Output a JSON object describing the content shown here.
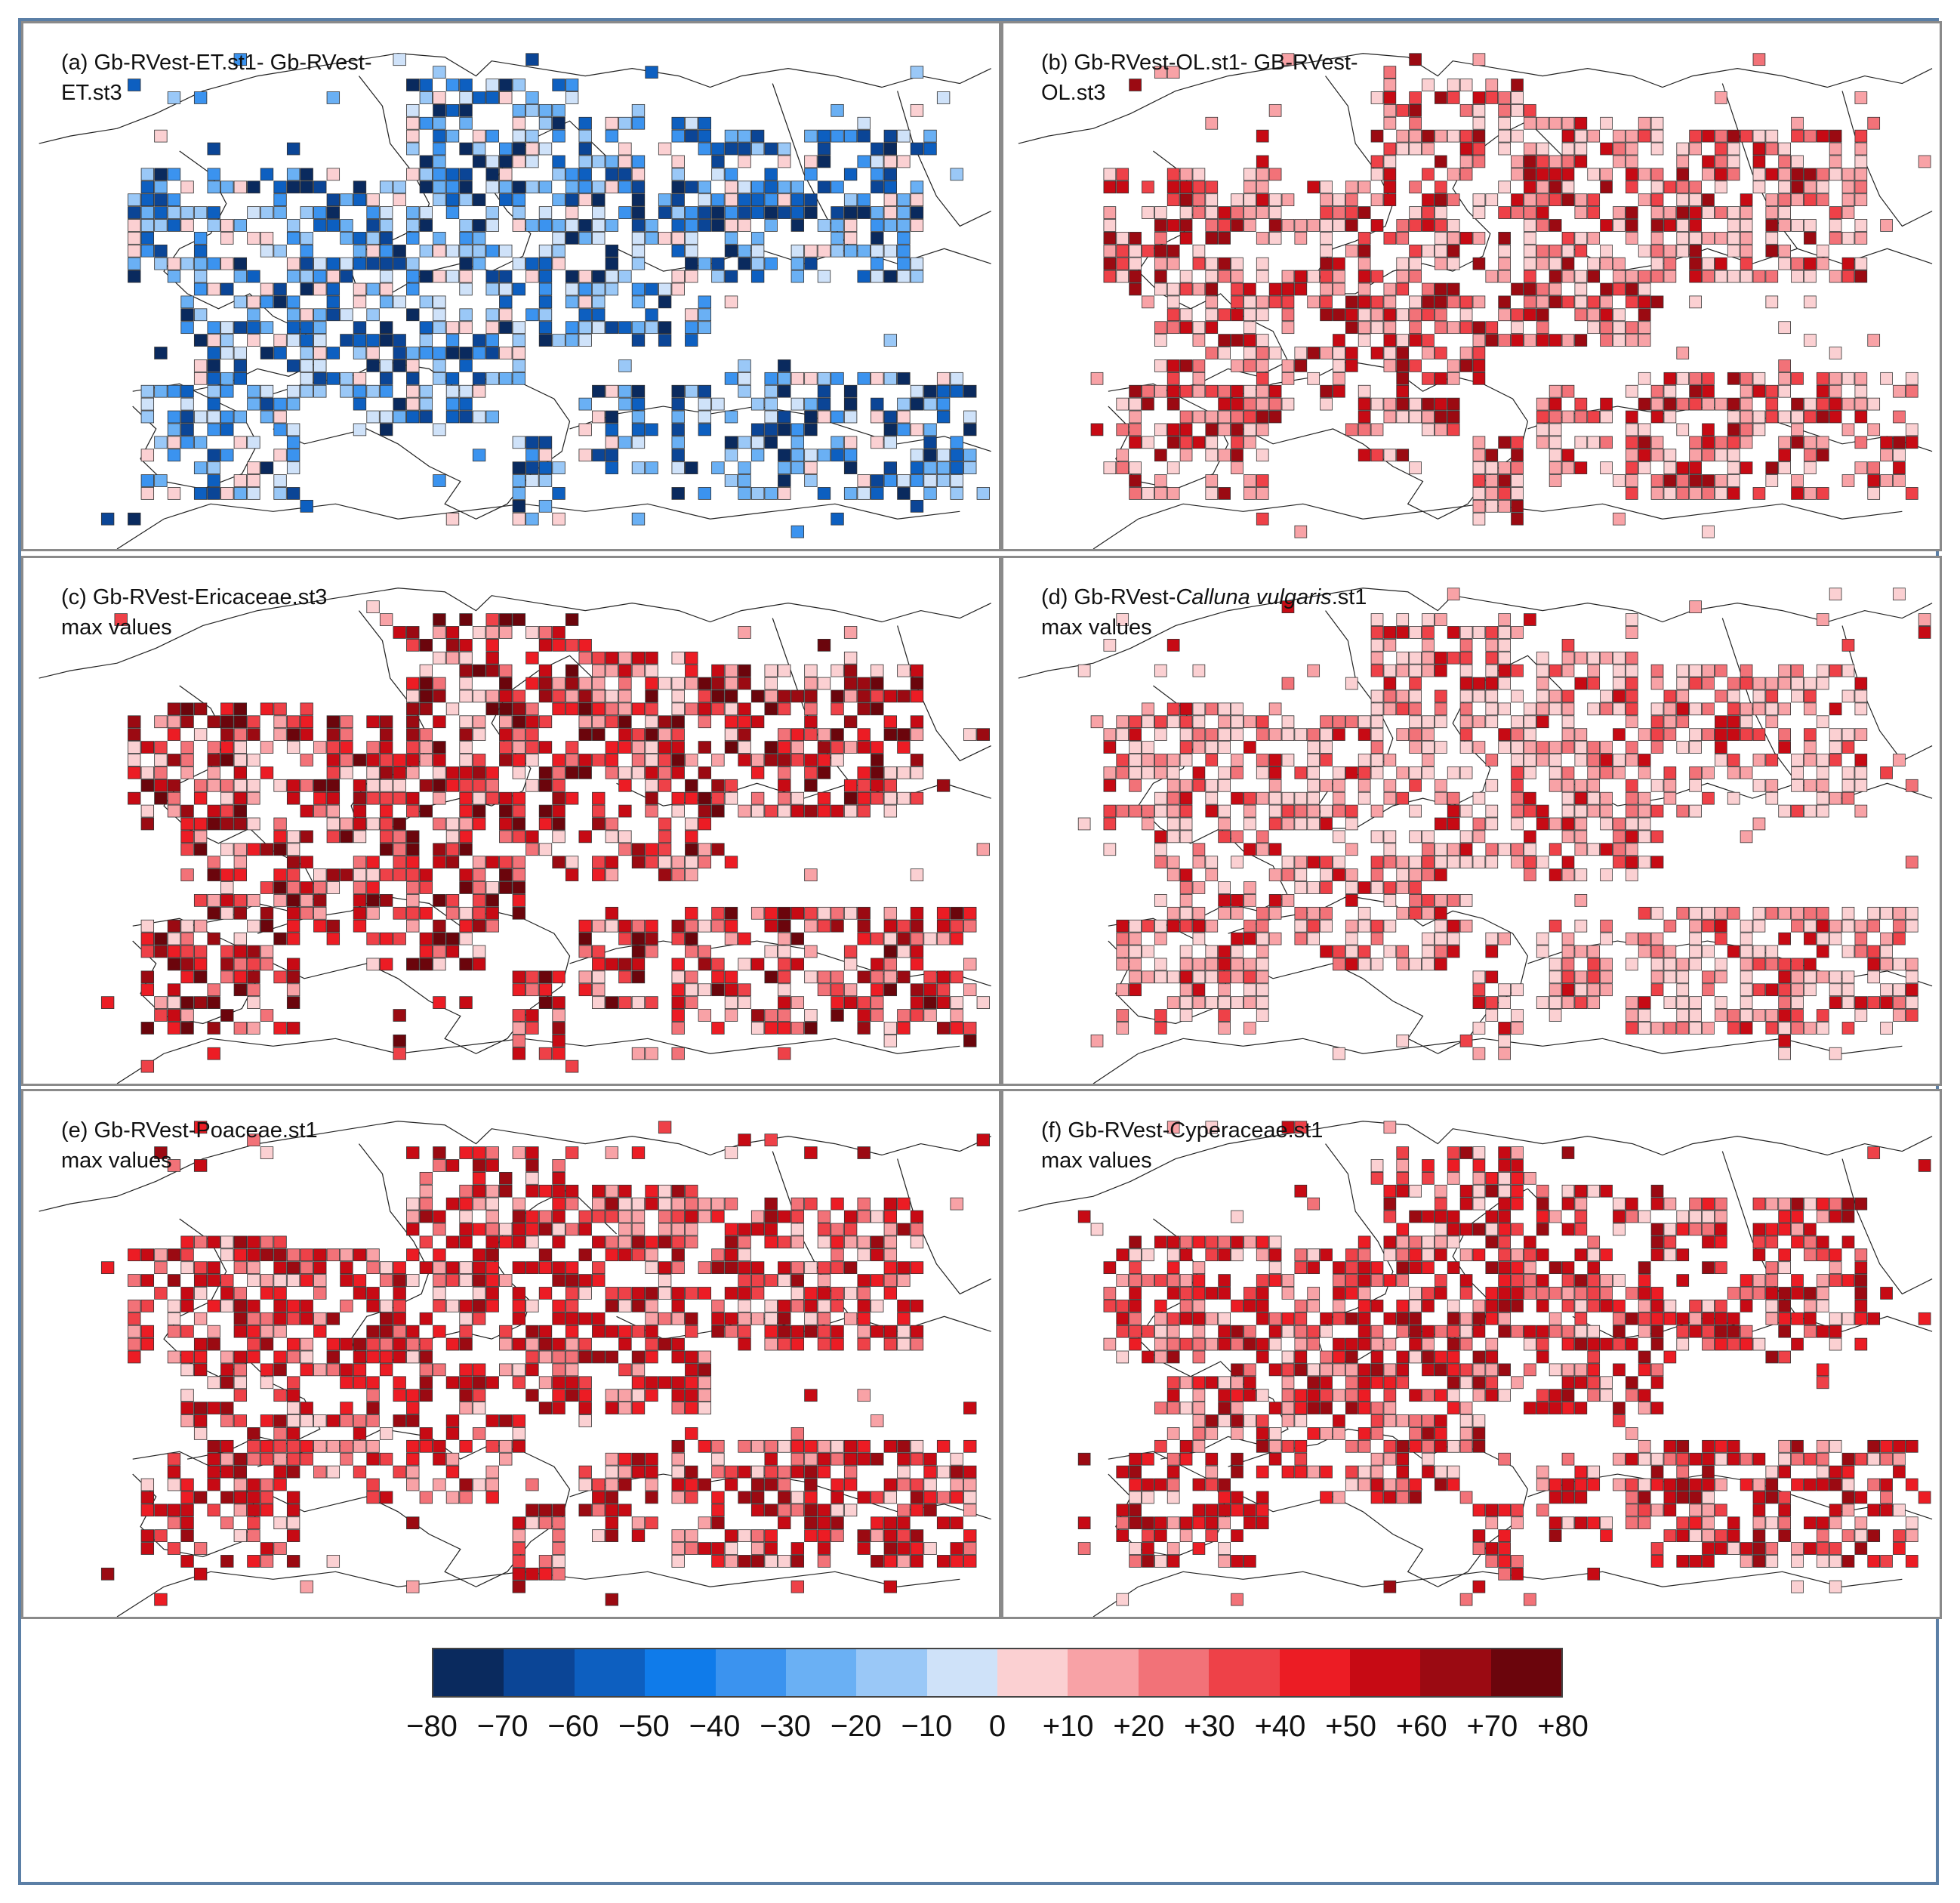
{
  "panels": [
    {
      "id": "a",
      "title": "(a) Gb-RVest-ET.st1- Gb-RVest-\nET.st3",
      "scheme": "blue",
      "seed": 11
    },
    {
      "id": "b",
      "title": "(b) Gb-RVest-OL.st1- GB-RVest-\nOL.st3",
      "scheme": "red",
      "seed": 23
    },
    {
      "id": "c",
      "title_prefix": "(c) Gb-RVest-Ericaceae.st3",
      "title_italic": "",
      "title_suffix": "",
      "line2": "max values",
      "scheme": "red-dark",
      "seed": 37
    },
    {
      "id": "d",
      "title_prefix": "(d) Gb-RVest-",
      "title_italic": "Calluna vulgaris",
      "title_suffix": ".st1",
      "line2": "max values",
      "scheme": "red-light",
      "seed": 41
    },
    {
      "id": "e",
      "title_prefix": "(e) Gb-RVest-Poaceae.st1",
      "title_italic": "",
      "title_suffix": "",
      "line2": "max values",
      "scheme": "red-mid",
      "seed": 53
    },
    {
      "id": "f",
      "title_prefix": "(f) Gb-RVest-Cyperaceae.st1",
      "title_italic": "",
      "title_suffix": "",
      "line2": "max values",
      "scheme": "red-mid",
      "seed": 67
    }
  ],
  "colorbar": {
    "colors": [
      "#0a2a5e",
      "#0b4596",
      "#0d5fc0",
      "#0f7bea",
      "#3b93ef",
      "#6ab0f4",
      "#9ac8f7",
      "#cfe2f9",
      "#fbd0d2",
      "#f8a2a6",
      "#f27278",
      "#ee4148",
      "#ec1c24",
      "#c70a14",
      "#9b0a12",
      "#6b050c"
    ],
    "tick_labels": [
      "−80",
      "−70",
      "−60",
      "−50",
      "−40",
      "−30",
      "−20",
      "−10",
      "0",
      "+10",
      "+20",
      "+30",
      "+40",
      "+50",
      "+60",
      "+70",
      "+80"
    ]
  }
}
